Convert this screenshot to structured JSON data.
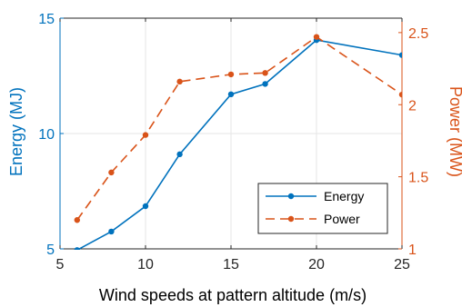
{
  "chart_data": {
    "type": "line",
    "xlabel": "Wind speeds at pattern altitude (m/s)",
    "ylabel_left": "Energy (MJ)",
    "ylabel_right": "Power (MW)",
    "x_ticks": [
      "5",
      "10",
      "15",
      "20",
      "25"
    ],
    "y_left_ticks": [
      "5",
      "10",
      "15"
    ],
    "y_right_ticks": [
      "1",
      "1.5",
      "2",
      "2.5"
    ],
    "xlim": [
      5,
      25
    ],
    "ylim_left": [
      5,
      15
    ],
    "ylim_right": [
      1,
      2.6
    ],
    "grid": true,
    "legend_position": "bottom-right",
    "colors": {
      "energy": "#0072BD",
      "power": "#D95319"
    },
    "series": [
      {
        "name": "Energy",
        "axis": "left",
        "style": "solid",
        "x": [
          6,
          8,
          10,
          12,
          15,
          17,
          20,
          25
        ],
        "values": [
          4.95,
          5.75,
          6.85,
          9.1,
          11.7,
          12.15,
          14.05,
          13.4
        ]
      },
      {
        "name": "Power",
        "axis": "right",
        "style": "dashed",
        "x": [
          6,
          8,
          10,
          12,
          15,
          17,
          20,
          25
        ],
        "values": [
          1.2,
          1.53,
          1.79,
          2.16,
          2.21,
          2.22,
          2.47,
          2.07
        ]
      }
    ]
  }
}
